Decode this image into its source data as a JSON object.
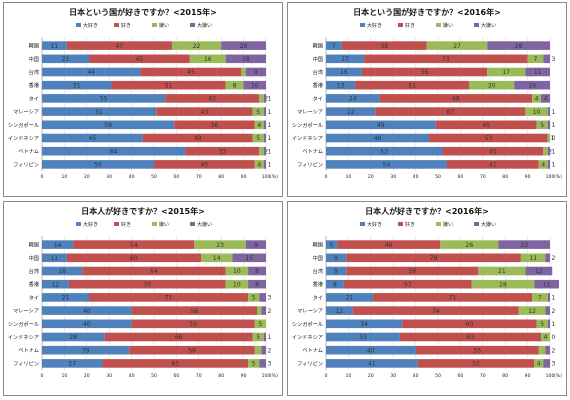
{
  "colors": {
    "daisuki": "#4F81BD",
    "suki": "#C0504D",
    "kirai": "#9BBB59",
    "daikirai": "#8064A2"
  },
  "chart_data": [
    {
      "type": "bar",
      "stacked": "horizontal-100",
      "title": "日本という国が好きですか？<2015年>",
      "legend": [
        "大好き",
        "好き",
        "嫌い",
        "大嫌い"
      ],
      "legend_position": "top",
      "categories": [
        "韓国",
        "中国",
        "台湾",
        "香港",
        "タイ",
        "マレーシア",
        "シンガポール",
        "インドネシア",
        "ベトナム",
        "フィリピン"
      ],
      "series": [
        {
          "name": "大好き",
          "values": [
            11,
            21,
            44,
            31,
            55,
            51,
            59,
            45,
            64,
            50
          ]
        },
        {
          "name": "好き",
          "values": [
            47,
            45,
            45,
            51,
            42,
            43,
            36,
            49,
            33,
            45
          ]
        },
        {
          "name": "嫌い",
          "values": [
            22,
            16,
            2,
            8,
            2,
            5,
            4,
            5,
            2,
            4
          ]
        },
        {
          "name": "大嫌い",
          "values": [
            20,
            18,
            9,
            10,
            1,
            1,
            1,
            1,
            1,
            1
          ]
        }
      ],
      "data_labels": [
        [
          "11",
          "47",
          "22",
          "20"
        ],
        [
          "21",
          "45",
          "16",
          "18"
        ],
        [
          "44",
          "45",
          "2",
          "9"
        ],
        [
          "31",
          "51",
          "8",
          "10"
        ],
        [
          "55",
          "42",
          "2",
          "1"
        ],
        [
          "51",
          "43",
          "5",
          "1"
        ],
        [
          "59",
          "36",
          "4",
          "1"
        ],
        [
          "45",
          "49",
          "5",
          "1"
        ],
        [
          "64",
          "33",
          "2",
          "1"
        ],
        [
          "50",
          "45",
          "4",
          "1"
        ]
      ],
      "xlim": [
        0,
        100
      ],
      "xticks": [
        "0",
        "10",
        "20",
        "30",
        "40",
        "50",
        "60",
        "70",
        "80",
        "90",
        "100"
      ],
      "unit": "(%)",
      "grid": true
    },
    {
      "type": "bar",
      "stacked": "horizontal-100",
      "title": "日本という国が好きですか？<2016年>",
      "legend": [
        "大好き",
        "好き",
        "嫌い",
        "大嫌い"
      ],
      "legend_position": "top",
      "categories": [
        "韓国",
        "中国",
        "台湾",
        "香港",
        "タイ",
        "マレーシア",
        "シンガポール",
        "インドネシア",
        "ベトナム",
        "フィリピン"
      ],
      "series": [
        {
          "name": "大好き",
          "values": [
            7,
            17,
            16,
            13,
            24,
            22,
            49,
            46,
            52,
            54
          ]
        },
        {
          "name": "好き",
          "values": [
            38,
            73,
            56,
            51,
            68,
            67,
            45,
            53,
            45,
            41
          ]
        },
        {
          "name": "嫌い",
          "values": [
            27,
            7,
            17,
            20,
            4,
            10,
            5,
            1,
            2,
            4
          ]
        },
        {
          "name": "大嫌い",
          "values": [
            28,
            3,
            11,
            16,
            4,
            1,
            1,
            0,
            1,
            1
          ]
        }
      ],
      "data_labels": [
        [
          "7",
          "38",
          "27",
          "28"
        ],
        [
          "17",
          "73",
          "7",
          "3"
        ],
        [
          "16",
          "56",
          "17",
          "11"
        ],
        [
          "13",
          "51",
          "20",
          "16"
        ],
        [
          "24",
          "68",
          "4",
          "4"
        ],
        [
          "22",
          "67",
          "10",
          "1"
        ],
        [
          "49",
          "45",
          "5",
          "1"
        ],
        [
          "46",
          "53",
          "1",
          "0"
        ],
        [
          "52",
          "45",
          "2",
          "1"
        ],
        [
          "54",
          "41",
          "4",
          "1"
        ]
      ],
      "xlim": [
        0,
        100
      ],
      "xticks": [
        "0",
        "10",
        "20",
        "30",
        "40",
        "50",
        "60",
        "70",
        "80",
        "90",
        "100"
      ],
      "unit": "(%)",
      "grid": true
    },
    {
      "type": "bar",
      "stacked": "horizontal-100",
      "title": "日本人が好きですか？<2015年>",
      "legend": [
        "大好き",
        "好き",
        "嫌い",
        "大嫌い"
      ],
      "legend_position": "top",
      "categories": [
        "韓国",
        "中国",
        "台湾",
        "香港",
        "タイ",
        "マレーシア",
        "シンガポール",
        "インドネシア",
        "ベトナム",
        "フィリピン"
      ],
      "series": [
        {
          "name": "大好き",
          "values": [
            14,
            11,
            18,
            12,
            21,
            40,
            40,
            28,
            39,
            27
          ]
        },
        {
          "name": "好き",
          "values": [
            54,
            60,
            64,
            70,
            71,
            56,
            55,
            66,
            56,
            65
          ]
        },
        {
          "name": "嫌い",
          "values": [
            23,
            14,
            10,
            10,
            5,
            2,
            5,
            5,
            3,
            5
          ]
        },
        {
          "name": "大嫌い",
          "values": [
            9,
            15,
            8,
            8,
            3,
            2,
            0,
            1,
            2,
            3
          ]
        }
      ],
      "data_labels": [
        [
          "14",
          "54",
          "23",
          "9"
        ],
        [
          "11",
          "60",
          "14",
          "15"
        ],
        [
          "18",
          "64",
          "10",
          "8"
        ],
        [
          "12",
          "70",
          "10",
          "8"
        ],
        [
          "21",
          "71",
          "5",
          "3"
        ],
        [
          "40",
          "56",
          "2",
          "2"
        ],
        [
          "40",
          "55",
          "5",
          ""
        ],
        [
          "28",
          "66",
          "5",
          "1"
        ],
        [
          "39",
          "56",
          "3",
          "2"
        ],
        [
          "27",
          "65",
          "5",
          "3"
        ]
      ],
      "xlim": [
        0,
        100
      ],
      "xticks": [
        "0",
        "10",
        "20",
        "30",
        "40",
        "50",
        "60",
        "70",
        "80",
        "90",
        "100"
      ],
      "unit": "(%)",
      "grid": true
    },
    {
      "type": "bar",
      "stacked": "horizontal-100",
      "title": "日本人が好きですか？<2016年>",
      "legend": [
        "大好き",
        "好き",
        "嫌い",
        "大嫌い"
      ],
      "legend_position": "top",
      "categories": [
        "韓国",
        "中国",
        "台湾",
        "香港",
        "タイ",
        "マレーシア",
        "シンガポール",
        "インドネシア",
        "ベトナム",
        "フィリピン"
      ],
      "series": [
        {
          "name": "大好き",
          "values": [
            5,
            9,
            9,
            8,
            21,
            12,
            34,
            33,
            40,
            41
          ]
        },
        {
          "name": "好き",
          "values": [
            46,
            78,
            59,
            57,
            71,
            74,
            60,
            63,
            55,
            52
          ]
        },
        {
          "name": "嫌い",
          "values": [
            26,
            11,
            21,
            28,
            7,
            12,
            5,
            4,
            3,
            4
          ]
        },
        {
          "name": "大嫌い",
          "values": [
            23,
            2,
            12,
            11,
            1,
            2,
            1,
            0,
            2,
            3
          ]
        }
      ],
      "data_labels": [
        [
          "5",
          "46",
          "26",
          "23"
        ],
        [
          "9",
          "78",
          "11",
          "2"
        ],
        [
          "9",
          "59",
          "21",
          "12"
        ],
        [
          "8",
          "57",
          "28",
          "11"
        ],
        [
          "21",
          "71",
          "7",
          "1"
        ],
        [
          "12",
          "74",
          "12",
          "2"
        ],
        [
          "34",
          "60",
          "5",
          "1"
        ],
        [
          "33",
          "63",
          "4",
          "0"
        ],
        [
          "40",
          "55",
          "3",
          "2"
        ],
        [
          "41",
          "52",
          "4",
          "3"
        ]
      ],
      "xlim": [
        0,
        100
      ],
      "xticks": [
        "0",
        "10",
        "20",
        "30",
        "40",
        "50",
        "60",
        "70",
        "80",
        "90",
        "100"
      ],
      "unit": "(%)",
      "grid": true
    }
  ]
}
